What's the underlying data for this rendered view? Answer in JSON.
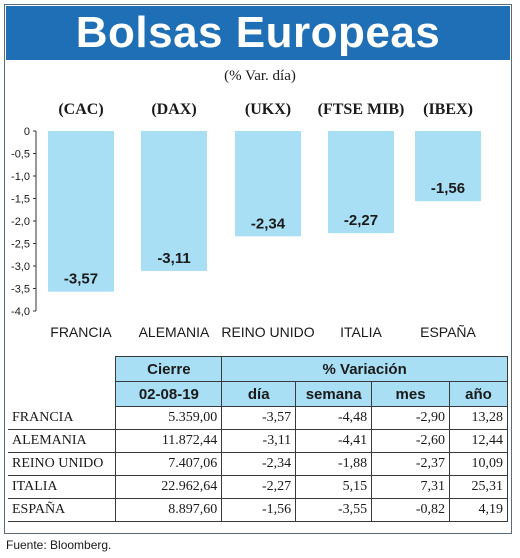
{
  "header": {
    "title": "Bolsas Europeas",
    "subtitle": "(% Var. día)"
  },
  "chart_data": {
    "type": "bar",
    "indices": [
      "(CAC)",
      "(DAX)",
      "(UKX)",
      "(FTSE MIB)",
      "(IBEX)"
    ],
    "categories": [
      "FRANCIA",
      "ALEMANIA",
      "REINO UNIDO",
      "ITALIA",
      "ESPAÑA"
    ],
    "values": [
      -3.57,
      -3.11,
      -2.34,
      -2.27,
      -1.56
    ],
    "value_labels": [
      "-3,57",
      "-3,11",
      "-2,34",
      "-2,27",
      "-1,56"
    ],
    "ylim": [
      -4.0,
      0
    ],
    "yticks": [
      0,
      -0.5,
      -1.0,
      -1.5,
      -2.0,
      -2.5,
      -3.0,
      -3.5,
      -4.0
    ],
    "ytick_labels": [
      "0",
      "-0,5",
      "-1,0",
      "-1,5",
      "-2,0",
      "-2,5",
      "-3,0",
      "-3,5",
      "-4,0"
    ],
    "bar_color": "#a9dff5",
    "grid": false
  },
  "table": {
    "group_headers": {
      "cierre": "Cierre",
      "variacion": "% Variación"
    },
    "sub_headers": {
      "date": "02-08-19",
      "dia": "día",
      "semana": "semana",
      "mes": "mes",
      "ano": "año"
    },
    "rows": [
      {
        "country": "FRANCIA",
        "cierre": "5.359,00",
        "dia": "-3,57",
        "semana": "-4,48",
        "mes": "-2,90",
        "ano": "13,28"
      },
      {
        "country": "ALEMANIA",
        "cierre": "11.872,44",
        "dia": "-3,11",
        "semana": "-4,41",
        "mes": "-2,60",
        "ano": "12,44"
      },
      {
        "country": "REINO UNIDO",
        "cierre": "7.407,06",
        "dia": "-2,34",
        "semana": "-1,88",
        "mes": "-2,37",
        "ano": "10,09"
      },
      {
        "country": "ITALIA",
        "cierre": "22.962,64",
        "dia": "-2,27",
        "semana": "5,15",
        "mes": "7,31",
        "ano": "25,31"
      },
      {
        "country": "ESPAÑA",
        "cierre": "8.897,60",
        "dia": "-1,56",
        "semana": "-3,55",
        "mes": "-0,82",
        "ano": "4,19"
      }
    ]
  },
  "source": "Fuente: Bloomberg."
}
